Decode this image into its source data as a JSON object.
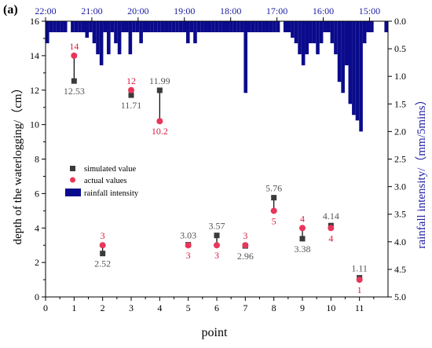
{
  "panel_label": "(a)",
  "chart_data": {
    "type": "scatter",
    "xlabel": "point",
    "ylabel": "depth of the waterlogging/（cm）",
    "y2label": "rainfall intensity/（mm/5mins）",
    "xlim": [
      0,
      12
    ],
    "ylim": [
      0,
      16
    ],
    "y2lim": [
      0,
      5
    ],
    "x_ticks": [
      0,
      1,
      2,
      3,
      4,
      5,
      6,
      7,
      8,
      9,
      10,
      11
    ],
    "y_ticks": [
      0,
      2,
      4,
      6,
      8,
      10,
      12,
      14,
      16
    ],
    "y2_ticks": [
      "0.0",
      "0.5",
      "1.0",
      "1.5",
      "2.0",
      "2.5",
      "3.0",
      "3.5",
      "4.0",
      "4.5",
      "5.0"
    ],
    "top_axis_ticks": [
      "22:00",
      "21:00",
      "20:00",
      "19:00",
      "18:00",
      "17:00",
      "16:00",
      "15:00"
    ],
    "series": [
      {
        "name": "simulated value",
        "color": "#3a3a3a",
        "marker": "square",
        "x": [
          1,
          2,
          3,
          4,
          5,
          6,
          7,
          8,
          9,
          10,
          11
        ],
        "y": [
          12.53,
          2.52,
          11.71,
          11.99,
          3.03,
          3.57,
          2.96,
          5.76,
          3.38,
          4.14,
          1.11
        ],
        "labels": [
          "12.53",
          "2.52",
          "11.71",
          "11.99",
          "3.03",
          "3.57",
          "2.96",
          "5.76",
          "3.38",
          "4.14",
          "1.11"
        ]
      },
      {
        "name": "actual values",
        "color": "#e8365a",
        "marker": "circle",
        "x": [
          1,
          2,
          3,
          4,
          5,
          6,
          7,
          8,
          9,
          10,
          11
        ],
        "y": [
          14,
          3,
          12,
          10.2,
          3,
          3,
          3,
          5,
          4,
          4,
          1
        ],
        "labels": [
          "14",
          "3",
          "12",
          "10.2",
          "3",
          "3",
          "3",
          "5",
          "4",
          "4",
          "1"
        ]
      }
    ],
    "rainfall": {
      "name": "rainfall intensity",
      "color": "#0a0a8c",
      "unit_axis": "right-inverted",
      "values": [
        0.4,
        0.2,
        0.2,
        0.2,
        0.2,
        0.2,
        0.0,
        0.2,
        0.2,
        0.2,
        0.2,
        0.3,
        0.2,
        0.4,
        0.6,
        0.8,
        0.2,
        0.6,
        0.2,
        0.4,
        0.6,
        0.2,
        0.2,
        0.6,
        0.2,
        0.2,
        0.4,
        0.2,
        0.2,
        0.2,
        0.2,
        0.2,
        0.2,
        0.2,
        0.2,
        0.2,
        0.2,
        0.2,
        0.2,
        0.4,
        0.2,
        0.4,
        0.2,
        0.2,
        0.2,
        0.2,
        0.2,
        0.2,
        0.2,
        0.2,
        0.2,
        0.2,
        0.2,
        0.2,
        0.2,
        1.3,
        0.2,
        0.2,
        0.2,
        0.2,
        0.2,
        0.2,
        0.2,
        0.2,
        0.2,
        0.0,
        0.2,
        0.2,
        0.3,
        0.4,
        0.6,
        0.8,
        0.6,
        0.4,
        0.4,
        0.6,
        0.4,
        0.2,
        0.2,
        0.4,
        0.6,
        1.1,
        1.3,
        0.8,
        1.5,
        1.7,
        1.8,
        2.0,
        0.4,
        0.2,
        0.2,
        0.0,
        0.0,
        0.0,
        0.2
      ]
    },
    "legend_position": "left-middle"
  }
}
